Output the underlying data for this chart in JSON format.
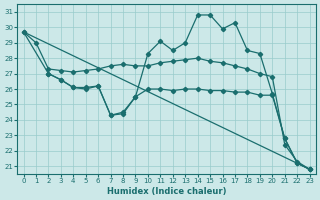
{
  "xlabel": "Humidex (Indice chaleur)",
  "bg_color": "#cce8e8",
  "grid_color": "#99cccc",
  "line_color": "#1a6e6e",
  "xlim": [
    -0.5,
    23.5
  ],
  "ylim": [
    20.5,
    31.5
  ],
  "yticks": [
    21,
    22,
    23,
    24,
    25,
    26,
    27,
    28,
    29,
    30,
    31
  ],
  "xticks": [
    0,
    1,
    2,
    3,
    4,
    5,
    6,
    7,
    8,
    9,
    10,
    11,
    12,
    13,
    14,
    15,
    16,
    17,
    18,
    19,
    20,
    21,
    22,
    23
  ],
  "line_diag": {
    "x": [
      0,
      23
    ],
    "y": [
      29.7,
      20.8
    ]
  },
  "line_flat": {
    "x": [
      0,
      1,
      2,
      3,
      4,
      5,
      6,
      7,
      8,
      9,
      10,
      11,
      12,
      13,
      14,
      15,
      16,
      17,
      18,
      19,
      20,
      21,
      22,
      23
    ],
    "y": [
      29.7,
      29.0,
      27.3,
      27.2,
      27.1,
      27.2,
      27.3,
      27.5,
      27.6,
      27.5,
      27.5,
      27.7,
      27.8,
      27.9,
      28.0,
      27.8,
      27.7,
      27.5,
      27.3,
      27.0,
      26.8,
      22.4,
      21.3,
      20.8
    ]
  },
  "line_mid": {
    "x": [
      0,
      2,
      3,
      4,
      5,
      6,
      7,
      8,
      9,
      10,
      11,
      12,
      13,
      14,
      15,
      16,
      17,
      18,
      19,
      20,
      21,
      22,
      23
    ],
    "y": [
      29.7,
      27.0,
      26.6,
      26.1,
      26.1,
      26.2,
      24.3,
      24.4,
      25.5,
      26.0,
      26.0,
      25.9,
      26.0,
      26.0,
      25.9,
      25.9,
      25.8,
      25.8,
      25.6,
      25.6,
      22.8,
      21.2,
      20.8
    ]
  },
  "line_high": {
    "x": [
      2,
      3,
      4,
      5,
      6,
      7,
      8,
      9,
      10,
      11,
      12,
      13,
      14,
      15,
      16,
      17,
      18,
      19,
      20,
      21,
      22,
      23
    ],
    "y": [
      27.0,
      26.6,
      26.1,
      26.0,
      26.2,
      24.3,
      24.5,
      25.5,
      28.3,
      29.1,
      28.5,
      29.0,
      30.8,
      30.8,
      29.9,
      30.3,
      28.5,
      28.3,
      25.7,
      22.8,
      21.2,
      20.8
    ]
  }
}
